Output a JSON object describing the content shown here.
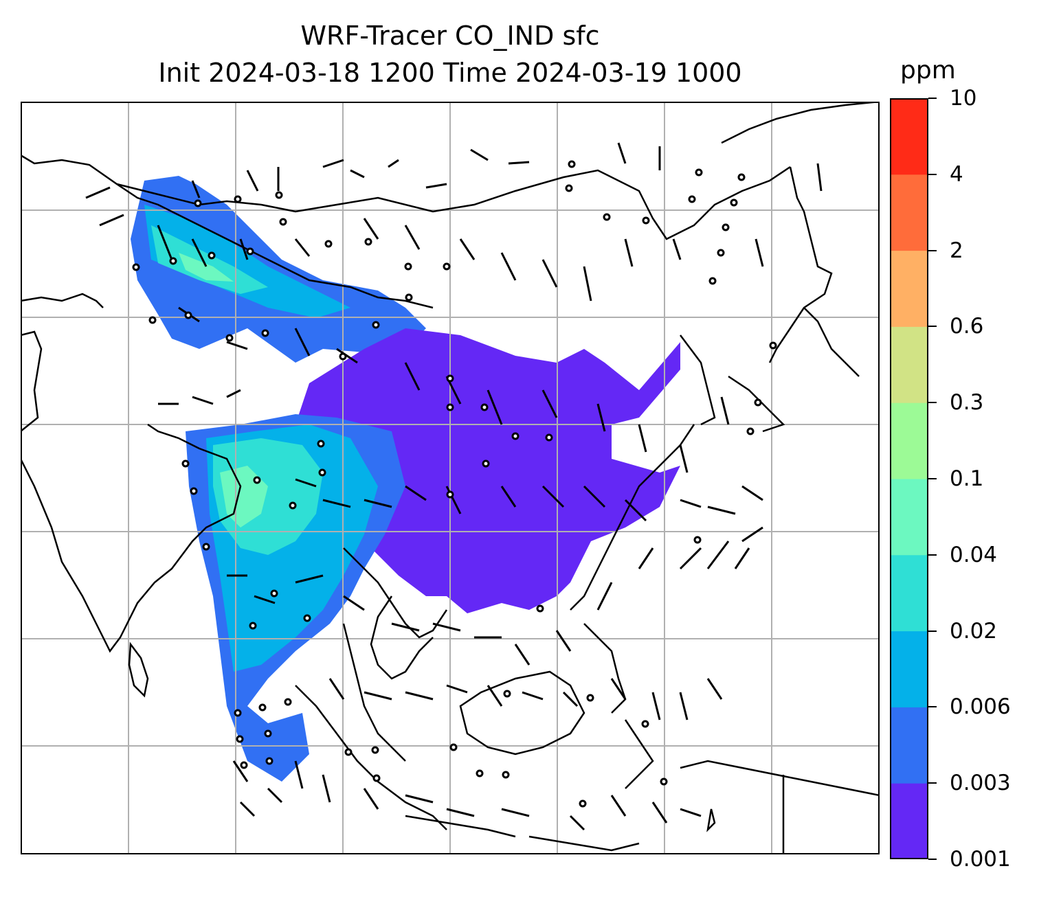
{
  "title": {
    "line1": "WRF-Tracer CO_IND sfc",
    "line2": "Init 2024-03-18 1200 Time 2024-03-19 1000"
  },
  "colorbar": {
    "unit": "ppm",
    "levels": [
      "0.001",
      "0.003",
      "0.006",
      "0.02",
      "0.04",
      "0.1",
      "0.3",
      "0.6",
      "2",
      "4",
      "10"
    ],
    "colors": [
      "#6428f5",
      "#3170f3",
      "#04b1e9",
      "#2fdfd5",
      "#6cf8c0",
      "#9cfa96",
      "#d1e385",
      "#ffb064",
      "#ff6c3a",
      "#ff2b17"
    ]
  },
  "map": {
    "land_outline_color": "#000000",
    "gridline_color": "#b0b0b0",
    "wind_barb_color": "#000000"
  }
}
